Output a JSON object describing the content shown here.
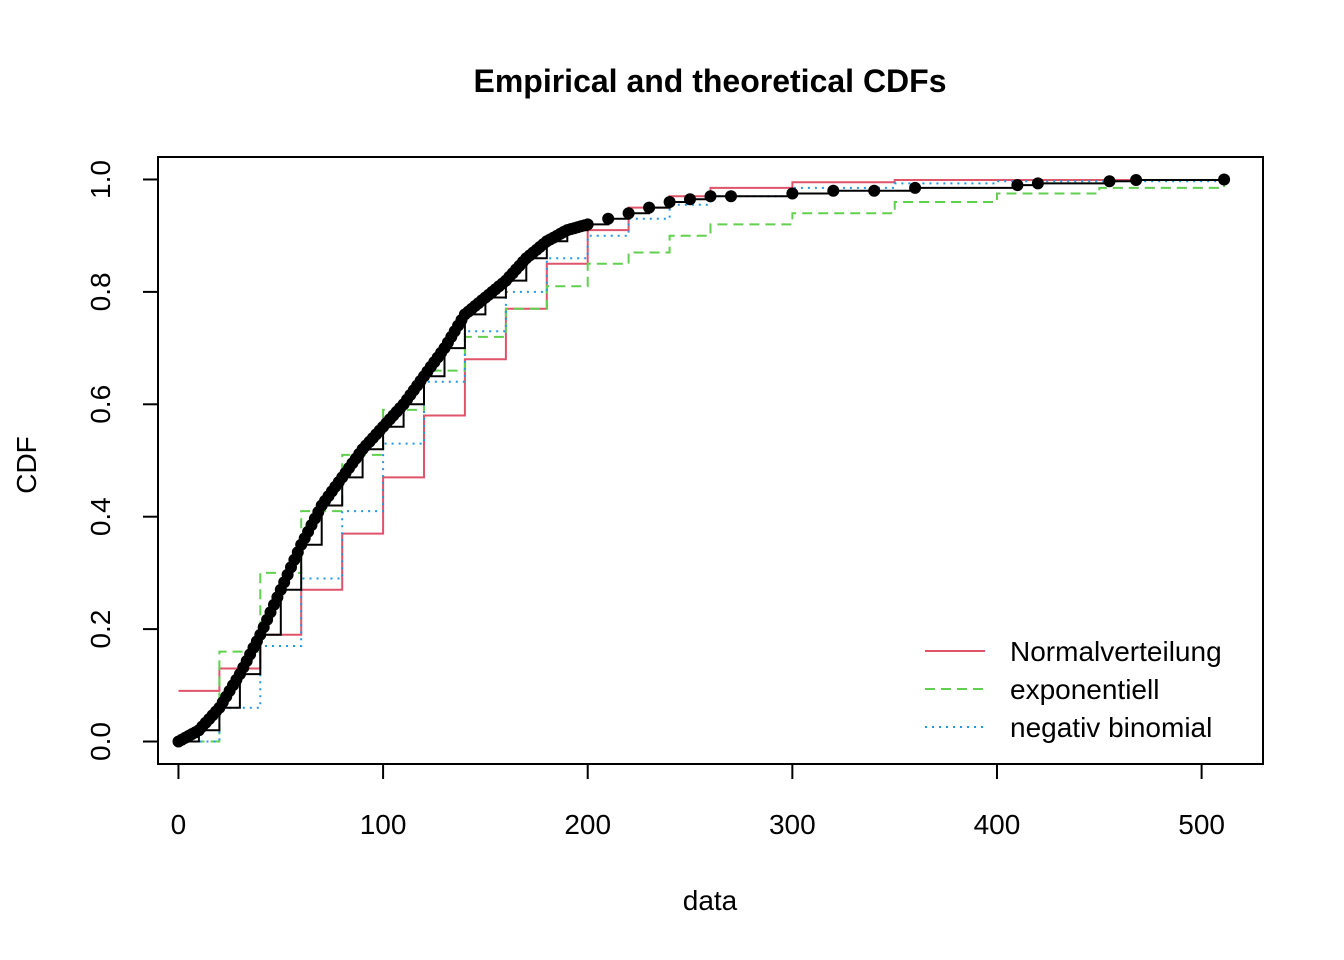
{
  "chart_data": {
    "type": "line",
    "title": "Empirical and theoretical CDFs",
    "xlabel": "data",
    "ylabel": "CDF",
    "xlim": [
      -10,
      530
    ],
    "ylim": [
      -0.04,
      1.04
    ],
    "x_ticks": [
      0,
      100,
      200,
      300,
      400,
      500
    ],
    "x_tick_labels": [
      "0",
      "100",
      "200",
      "300",
      "400",
      "500"
    ],
    "y_ticks": [
      0.0,
      0.2,
      0.4,
      0.6,
      0.8,
      1.0
    ],
    "y_tick_labels": [
      "0.0",
      "0.2",
      "0.4",
      "0.6",
      "0.8",
      "1.0"
    ],
    "grid": false,
    "legend_position": "bottom-right",
    "empirical": {
      "color": "#000000",
      "points": [
        [
          0,
          0.0
        ],
        [
          10,
          0.02
        ],
        [
          20,
          0.06
        ],
        [
          30,
          0.12
        ],
        [
          40,
          0.19
        ],
        [
          50,
          0.27
        ],
        [
          60,
          0.35
        ],
        [
          70,
          0.42
        ],
        [
          80,
          0.47
        ],
        [
          90,
          0.52
        ],
        [
          100,
          0.56
        ],
        [
          110,
          0.6
        ],
        [
          120,
          0.65
        ],
        [
          130,
          0.7
        ],
        [
          140,
          0.76
        ],
        [
          150,
          0.79
        ],
        [
          160,
          0.82
        ],
        [
          170,
          0.86
        ],
        [
          180,
          0.89
        ],
        [
          190,
          0.91
        ],
        [
          200,
          0.92
        ],
        [
          210,
          0.93
        ],
        [
          220,
          0.94
        ],
        [
          230,
          0.95
        ],
        [
          240,
          0.96
        ],
        [
          250,
          0.965
        ],
        [
          260,
          0.97
        ],
        [
          270,
          0.97
        ],
        [
          300,
          0.975
        ],
        [
          320,
          0.98
        ],
        [
          340,
          0.98
        ],
        [
          360,
          0.985
        ],
        [
          410,
          0.99
        ],
        [
          420,
          0.993
        ],
        [
          455,
          0.997
        ],
        [
          468,
          0.999
        ],
        [
          511,
          1.0
        ]
      ]
    },
    "series": [
      {
        "name": "Normalverteilung",
        "color": "#df536b",
        "dash": "solid",
        "points": [
          [
            0,
            0.09
          ],
          [
            20,
            0.13
          ],
          [
            40,
            0.19
          ],
          [
            60,
            0.27
          ],
          [
            80,
            0.37
          ],
          [
            100,
            0.47
          ],
          [
            120,
            0.58
          ],
          [
            140,
            0.68
          ],
          [
            160,
            0.77
          ],
          [
            180,
            0.85
          ],
          [
            200,
            0.91
          ],
          [
            220,
            0.95
          ],
          [
            240,
            0.97
          ],
          [
            260,
            0.985
          ],
          [
            300,
            0.995
          ],
          [
            350,
            0.999
          ],
          [
            511,
            1.0
          ]
        ]
      },
      {
        "name": "exponentiell",
        "color": "#61d04f",
        "dash": "dashed",
        "points": [
          [
            0,
            0.0
          ],
          [
            20,
            0.16
          ],
          [
            40,
            0.3
          ],
          [
            60,
            0.41
          ],
          [
            80,
            0.51
          ],
          [
            100,
            0.59
          ],
          [
            120,
            0.66
          ],
          [
            140,
            0.72
          ],
          [
            160,
            0.77
          ],
          [
            180,
            0.81
          ],
          [
            200,
            0.85
          ],
          [
            220,
            0.87
          ],
          [
            240,
            0.9
          ],
          [
            260,
            0.92
          ],
          [
            300,
            0.94
          ],
          [
            350,
            0.96
          ],
          [
            400,
            0.975
          ],
          [
            450,
            0.985
          ],
          [
            511,
            0.995
          ]
        ]
      },
      {
        "name": "negativ binomial",
        "color": "#2297e6",
        "dash": "dotted",
        "points": [
          [
            0,
            0.0
          ],
          [
            20,
            0.06
          ],
          [
            40,
            0.17
          ],
          [
            60,
            0.29
          ],
          [
            80,
            0.41
          ],
          [
            100,
            0.53
          ],
          [
            120,
            0.64
          ],
          [
            140,
            0.73
          ],
          [
            160,
            0.8
          ],
          [
            180,
            0.86
          ],
          [
            200,
            0.9
          ],
          [
            220,
            0.93
          ],
          [
            240,
            0.955
          ],
          [
            260,
            0.97
          ],
          [
            300,
            0.985
          ],
          [
            350,
            0.993
          ],
          [
            400,
            0.997
          ],
          [
            511,
            1.0
          ]
        ]
      }
    ]
  }
}
